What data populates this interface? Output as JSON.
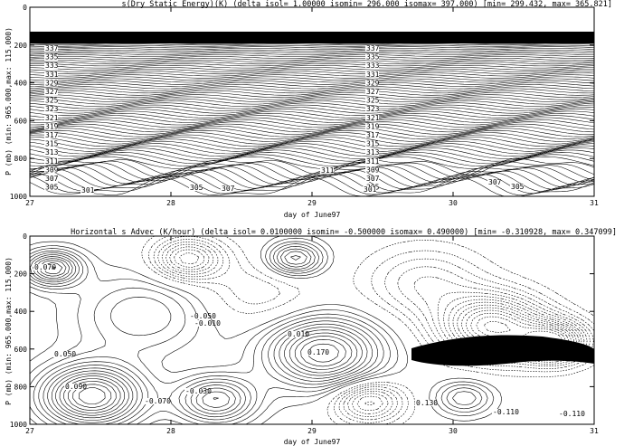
{
  "chart_data": [
    {
      "type": "contour",
      "title": "s(Dry Static Energy)(K)  (delta isol= 1.00000  isomin= 296.000  isomax= 397.000) [min= 299.432, max= 365.821]",
      "xlabel": "day of June97",
      "ylabel": "P (mb) (min: 965.000,max: 115.000)",
      "x_ticks": [
        "27",
        "28",
        "29",
        "30",
        "31"
      ],
      "y_ticks": [
        "0",
        "200",
        "400",
        "600",
        "800",
        "1000"
      ],
      "xlim": [
        27,
        31
      ],
      "ylim": [
        1000,
        0
      ],
      "contour_labels": [
        "301",
        "305",
        "307",
        "309",
        "311",
        "313",
        "315",
        "317",
        "319",
        "321",
        "323",
        "325",
        "327",
        "329",
        "331",
        "333",
        "335",
        "337"
      ],
      "isolines": {
        "delta": 1.0,
        "min": 296.0,
        "max": 397.0
      },
      "data_range": {
        "min": 299.432,
        "max": 365.821
      }
    },
    {
      "type": "contour",
      "title": "Horizontal s Advec (K/hour)  (delta isol= 0.0100000  isomin= -0.500000  isomax= 0.490000) [min= -0.310928, max= 0.347099]",
      "xlabel": "day of June97",
      "ylabel": "P (mb) (min: 965.000,max: 115.000)",
      "x_ticks": [
        "27",
        "28",
        "29",
        "30",
        "31"
      ],
      "y_ticks": [
        "0",
        "200",
        "400",
        "600",
        "800",
        "1000"
      ],
      "xlim": [
        27,
        31
      ],
      "ylim": [
        1000,
        0
      ],
      "contour_labels": [
        "0.070",
        "-0.050",
        "-0.010",
        "0.010",
        "0.090",
        "-0.070",
        "0.170",
        "-0.030",
        "0.050",
        "0.130",
        "-0.110"
      ],
      "isolines": {
        "delta": 0.01,
        "min": -0.5,
        "max": 0.49
      },
      "data_range": {
        "min": -0.310928,
        "max": 0.347099
      }
    }
  ]
}
